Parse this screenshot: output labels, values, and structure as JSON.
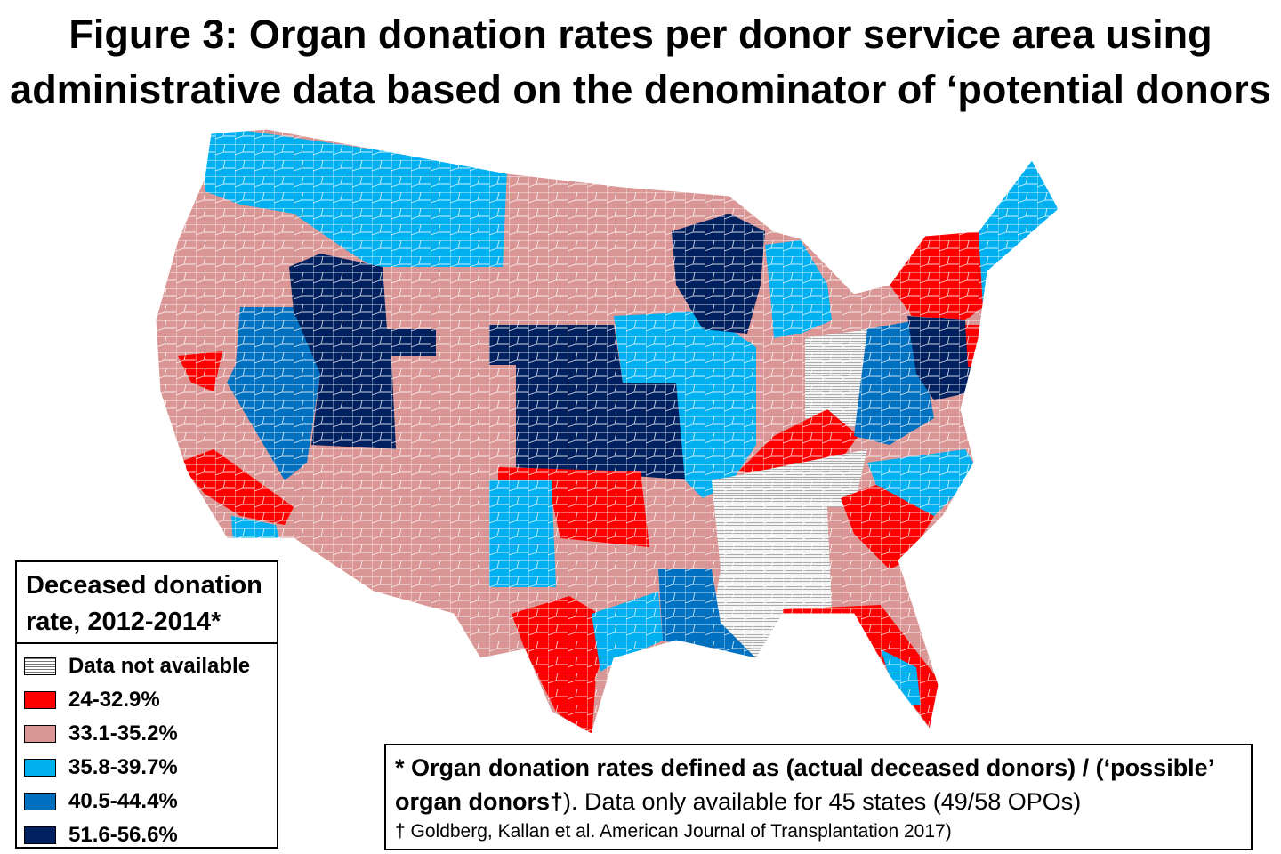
{
  "title": {
    "line1": "Figure 3: Organ donation rates per donor service area using",
    "line2": "administrative data based on the denominator of ‘potential donors"
  },
  "legend": {
    "title_line1": "Deceased donation",
    "title_line2": "rate, 2012-2014*",
    "items": [
      {
        "label": "Data not available",
        "color": "hatch"
      },
      {
        "label": "24-32.9%",
        "color": "#FF0000"
      },
      {
        "label": "33.1-35.2%",
        "color": "#D99694"
      },
      {
        "label": "35.8-39.7%",
        "color": "#00B0F0"
      },
      {
        "label": "40.5-44.4%",
        "color": "#0070C0"
      },
      {
        "label": "51.6-56.6%",
        "color": "#002060"
      }
    ]
  },
  "footnote": {
    "bold1": "* Organ donation rates defined as (actual deceased donors) / (‘possible’",
    "bold2": "organ donors†",
    "rest2": "). Data only available  for 45 states (49/58 OPOs)",
    "line3": "† Goldberg, Kallan et al. American Journal of Transplantation 2017)"
  }
}
